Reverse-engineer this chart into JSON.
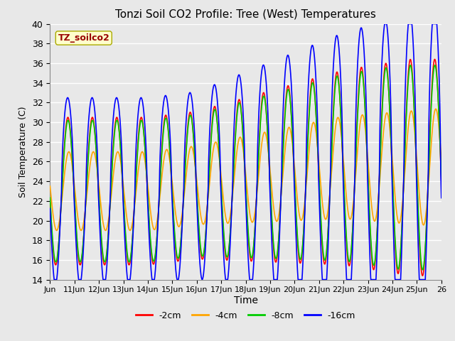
{
  "title": "Tonzi Soil CO2 Profile: Tree (West) Temperatures",
  "xlabel": "Time",
  "ylabel": "Soil Temperature (C)",
  "ylim": [
    14,
    40
  ],
  "yticks": [
    14,
    16,
    18,
    20,
    22,
    24,
    26,
    28,
    30,
    32,
    34,
    36,
    38,
    40
  ],
  "series": [
    {
      "label": "-2cm",
      "color": "#FF0000",
      "lw": 1.2
    },
    {
      "label": "-4cm",
      "color": "#FFA500",
      "lw": 1.2
    },
    {
      "label": "-8cm",
      "color": "#00CC00",
      "lw": 1.2
    },
    {
      "label": "-16cm",
      "color": "#0000FF",
      "lw": 1.2
    }
  ],
  "legend_box_color": "#FFFFCC",
  "legend_box_edge": "#AAAA00",
  "annotation_text": "TZ_soilco2",
  "annotation_color": "#990000",
  "background_color": "#E8E8E8",
  "plot_bg_color": "#E8E8E8",
  "grid_color": "#FFFFFF",
  "xtick_labels": [
    "Jun",
    "11Jun",
    "12Jun",
    "13Jun",
    "14Jun",
    "15Jun",
    "16Jun",
    "17Jun",
    "18Jun",
    "19Jun",
    "20Jun",
    "21Jun",
    "22Jun",
    "23Jun",
    "24Jun",
    "25Jun",
    "26"
  ],
  "num_points": 2000
}
